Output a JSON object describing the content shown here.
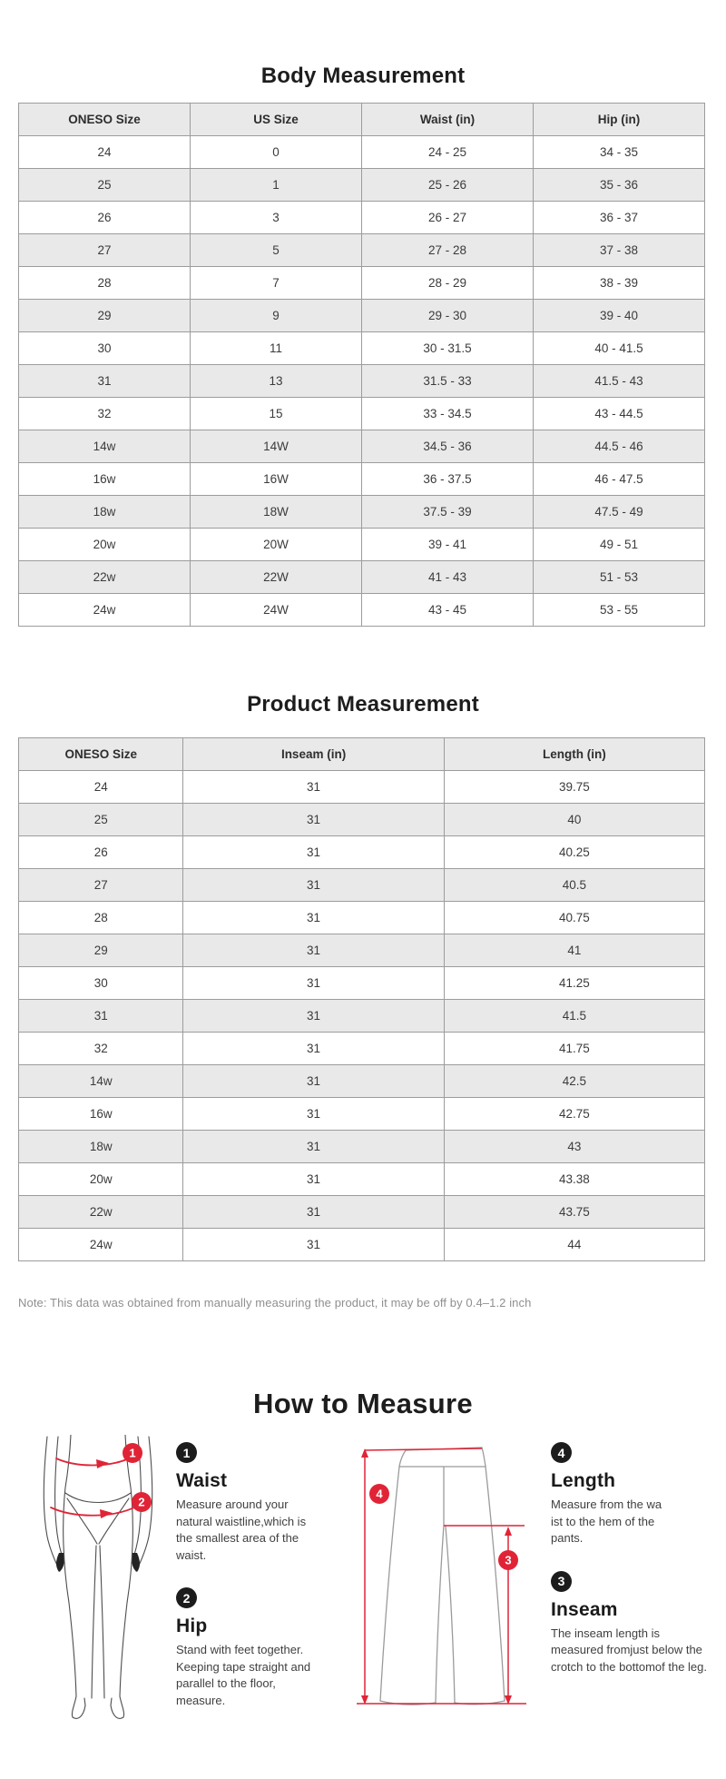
{
  "body_measurement": {
    "title": "Body Measurement",
    "headers": [
      "ONESO Size",
      "US Size",
      "Waist (in)",
      "Hip (in)"
    ],
    "rows": [
      [
        "24",
        "0",
        "24 - 25",
        "34 - 35"
      ],
      [
        "25",
        "1",
        "25 - 26",
        "35 - 36"
      ],
      [
        "26",
        "3",
        "26 - 27",
        "36 - 37"
      ],
      [
        "27",
        "5",
        "27 - 28",
        "37 - 38"
      ],
      [
        "28",
        "7",
        "28 - 29",
        "38 - 39"
      ],
      [
        "29",
        "9",
        "29 - 30",
        "39 - 40"
      ],
      [
        "30",
        "11",
        "30 - 31.5",
        "40 - 41.5"
      ],
      [
        "31",
        "13",
        "31.5 - 33",
        "41.5 - 43"
      ],
      [
        "32",
        "15",
        "33 - 34.5",
        "43 - 44.5"
      ],
      [
        "14w",
        "14W",
        "34.5 - 36",
        "44.5 - 46"
      ],
      [
        "16w",
        "16W",
        "36 - 37.5",
        "46 - 47.5"
      ],
      [
        "18w",
        "18W",
        "37.5 - 39",
        "47.5 - 49"
      ],
      [
        "20w",
        "20W",
        "39 - 41",
        "49 - 51"
      ],
      [
        "22w",
        "22W",
        "41 - 43",
        "51 - 53"
      ],
      [
        "24w",
        "24W",
        "43 - 45",
        "53 - 55"
      ]
    ]
  },
  "product_measurement": {
    "title": "Product Measurement",
    "headers": [
      "ONESO Size",
      "Inseam (in)",
      "Length (in)"
    ],
    "rows": [
      [
        "24",
        "31",
        "39.75"
      ],
      [
        "25",
        "31",
        "40"
      ],
      [
        "26",
        "31",
        "40.25"
      ],
      [
        "27",
        "31",
        "40.5"
      ],
      [
        "28",
        "31",
        "40.75"
      ],
      [
        "29",
        "31",
        "41"
      ],
      [
        "30",
        "31",
        "41.25"
      ],
      [
        "31",
        "31",
        "41.5"
      ],
      [
        "32",
        "31",
        "41.75"
      ],
      [
        "14w",
        "31",
        "42.5"
      ],
      [
        "16w",
        "31",
        "42.75"
      ],
      [
        "18w",
        "31",
        "43"
      ],
      [
        "20w",
        "31",
        "43.38"
      ],
      [
        "22w",
        "31",
        "43.75"
      ],
      [
        "24w",
        "31",
        "44"
      ]
    ]
  },
  "note": "Note: This data was obtained from manually measuring the product, it may be off by 0.4–1.2 inch",
  "how_to_measure": {
    "title": "How to Measure",
    "steps": [
      {
        "number": "1",
        "heading": "Waist",
        "text": "Measure around your\nnatural waistline,which is\nthe smallest area of the\nwaist."
      },
      {
        "number": "2",
        "heading": "Hip",
        "text": "Stand with feet together.\nKeeping tape straight and\nparallel to the floor,\nmeasure."
      },
      {
        "number": "4",
        "heading": "Length",
        "text": "Measure from the wa\nist to the hem of the\npants."
      },
      {
        "number": "3",
        "heading": "Inseam",
        "text": "The inseam length is\nmeasured fromjust below the\ncrotch to the bottomof the leg."
      }
    ],
    "figure_badges": {
      "waist": "1",
      "hip": "2",
      "length": "4",
      "inseam": "3"
    }
  },
  "colors": {
    "accent_red": "#e02436",
    "row_alt_gray": "#e9e9e9",
    "table_border": "#9c9c9c"
  }
}
